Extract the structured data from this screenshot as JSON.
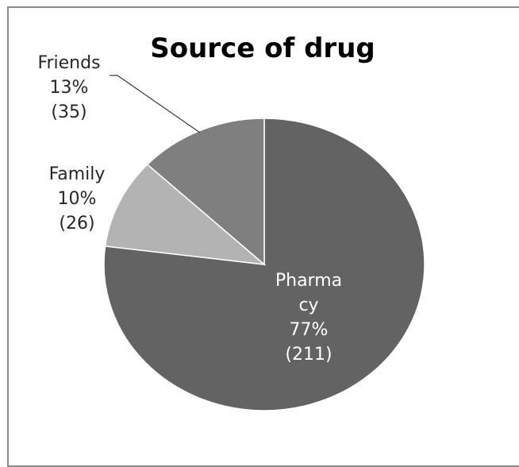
{
  "chart_data": {
    "type": "pie",
    "title": "Source of drug",
    "slices": [
      {
        "name": "Pharmacy",
        "label_lines": [
          "Pharma",
          "cy",
          "77%",
          "(211)"
        ],
        "percent": 77,
        "count": 211,
        "color": "#636363"
      },
      {
        "name": "Family",
        "label_lines": [
          "Family",
          "10%",
          "(26)"
        ],
        "percent": 10,
        "count": 26,
        "color": "#b3b3b3"
      },
      {
        "name": "Friends",
        "label_lines": [
          "Friends",
          "13%",
          "(35)"
        ],
        "percent": 13,
        "count": 35,
        "color": "#7f7f7f"
      }
    ],
    "start_angle_deg": 0,
    "direction": "clockwise",
    "legend": "none",
    "label_position": "inside for largest slice, outside with leader line for others"
  }
}
